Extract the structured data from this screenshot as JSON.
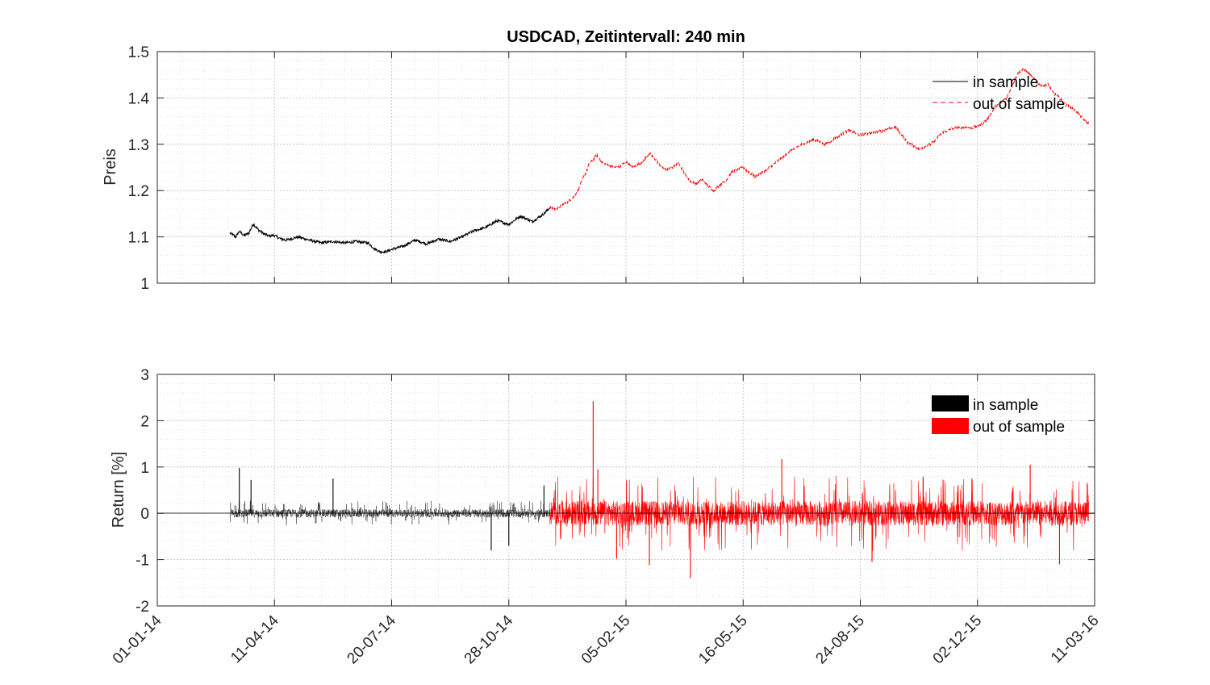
{
  "chart_data": [
    {
      "type": "line",
      "title": "USDCAD, Zeitintervall: 240 min",
      "xlabel": "",
      "ylabel": "Preis",
      "ylim": [
        1,
        1.5
      ],
      "yticks": [
        "1",
        "1.1",
        "1.2",
        "1.3",
        "1.4",
        "1.5"
      ],
      "ytick_values": [
        1,
        1.1,
        1.2,
        1.3,
        1.4,
        1.5
      ],
      "grid": true,
      "minor_grid": true,
      "legend": "top-right",
      "series": [
        {
          "name": "in sample",
          "color": "#000000",
          "style": "solid",
          "x_days": [
            62,
            64,
            67,
            70,
            74,
            78,
            82,
            86,
            90,
            95,
            100,
            105,
            110,
            120,
            130,
            140,
            150,
            160,
            170,
            180,
            185,
            190,
            195,
            200,
            210,
            220,
            230,
            240,
            250,
            260,
            270,
            280,
            290,
            300,
            310,
            320,
            330,
            335
          ],
          "values": [
            1.108,
            1.105,
            1.1,
            1.112,
            1.103,
            1.108,
            1.128,
            1.116,
            1.108,
            1.102,
            1.103,
            1.096,
            1.093,
            1.1,
            1.093,
            1.087,
            1.09,
            1.087,
            1.09,
            1.087,
            1.075,
            1.068,
            1.068,
            1.073,
            1.08,
            1.093,
            1.085,
            1.095,
            1.09,
            1.1,
            1.113,
            1.12,
            1.135,
            1.127,
            1.145,
            1.133,
            1.15,
            1.163
          ]
        },
        {
          "name": "out of sample",
          "color": "#ff0000",
          "style": "dashed",
          "x_days": [
            335,
            340,
            345,
            350,
            355,
            360,
            363,
            366,
            369,
            372,
            375,
            380,
            385,
            390,
            395,
            400,
            405,
            410,
            415,
            420,
            425,
            430,
            435,
            440,
            445,
            450,
            455,
            460,
            465,
            470,
            475,
            480,
            485,
            490,
            500,
            510,
            520,
            530,
            540,
            550,
            560,
            570,
            580,
            590,
            600,
            610,
            620,
            630,
            640,
            650,
            660,
            670,
            680,
            690,
            695,
            700,
            705,
            710,
            715,
            720,
            725,
            730,
            735,
            740,
            745,
            750,
            755,
            760,
            765,
            770,
            775,
            780,
            785,
            790,
            795
          ],
          "values": [
            1.163,
            1.16,
            1.168,
            1.175,
            1.185,
            1.205,
            1.225,
            1.24,
            1.26,
            1.265,
            1.278,
            1.26,
            1.255,
            1.25,
            1.252,
            1.262,
            1.25,
            1.255,
            1.265,
            1.28,
            1.268,
            1.252,
            1.245,
            1.25,
            1.262,
            1.235,
            1.22,
            1.215,
            1.225,
            1.21,
            1.2,
            1.212,
            1.22,
            1.24,
            1.25,
            1.23,
            1.245,
            1.265,
            1.285,
            1.3,
            1.31,
            1.3,
            1.315,
            1.33,
            1.32,
            1.325,
            1.33,
            1.338,
            1.305,
            1.29,
            1.3,
            1.325,
            1.335,
            1.337,
            1.335,
            1.34,
            1.345,
            1.36,
            1.38,
            1.39,
            1.4,
            1.43,
            1.455,
            1.462,
            1.45,
            1.435,
            1.425,
            1.43,
            1.41,
            1.4,
            1.385,
            1.38,
            1.37,
            1.355,
            1.345
          ]
        }
      ]
    },
    {
      "type": "line",
      "title": "",
      "xlabel": "",
      "ylabel": "Return [%]",
      "ylim": [
        -2,
        3
      ],
      "yticks": [
        "-2",
        "-1",
        "0",
        "1",
        "2",
        "3"
      ],
      "ytick_values": [
        -2,
        -1,
        0,
        1,
        2,
        3
      ],
      "grid": true,
      "minor_grid": true,
      "legend": "top-right",
      "series": [
        {
          "name": "in sample",
          "color": "#000000",
          "x_range_days": [
            62,
            335
          ],
          "typical_abs_range": 0.15,
          "extremes": [
            {
              "x_day": 70,
              "value": 0.98
            },
            {
              "x_day": 80,
              "value": 0.72
            },
            {
              "x_day": 150,
              "value": 0.75
            },
            {
              "x_day": 285,
              "value": -0.8
            },
            {
              "x_day": 300,
              "value": -0.7
            },
            {
              "x_day": 330,
              "value": 0.6
            }
          ]
        },
        {
          "name": "out of sample",
          "color": "#ff0000",
          "x_range_days": [
            335,
            795
          ],
          "typical_abs_range": 0.45,
          "extremes": [
            {
              "x_day": 372,
              "value": 2.42
            },
            {
              "x_day": 376,
              "value": 0.95
            },
            {
              "x_day": 392,
              "value": -0.98
            },
            {
              "x_day": 420,
              "value": -1.12
            },
            {
              "x_day": 455,
              "value": -1.4
            },
            {
              "x_day": 533,
              "value": 1.17
            },
            {
              "x_day": 610,
              "value": -1.05
            },
            {
              "x_day": 745,
              "value": 1.05
            },
            {
              "x_day": 770,
              "value": -1.1
            }
          ]
        }
      ]
    }
  ],
  "x_axis": {
    "start_date": "01-01-14",
    "tick_days": [
      0,
      100,
      200,
      300,
      400,
      500,
      600,
      700,
      800
    ],
    "tick_labels": [
      "01-01-14",
      "11-04-14",
      "20-07-14",
      "28-10-14",
      "05-02-15",
      "16-05-15",
      "24-08-15",
      "02-12-15",
      "11-03-16"
    ],
    "range_days": [
      0,
      800
    ]
  },
  "legend": {
    "in_sample": "in sample",
    "out_of_sample": "out of sample"
  }
}
